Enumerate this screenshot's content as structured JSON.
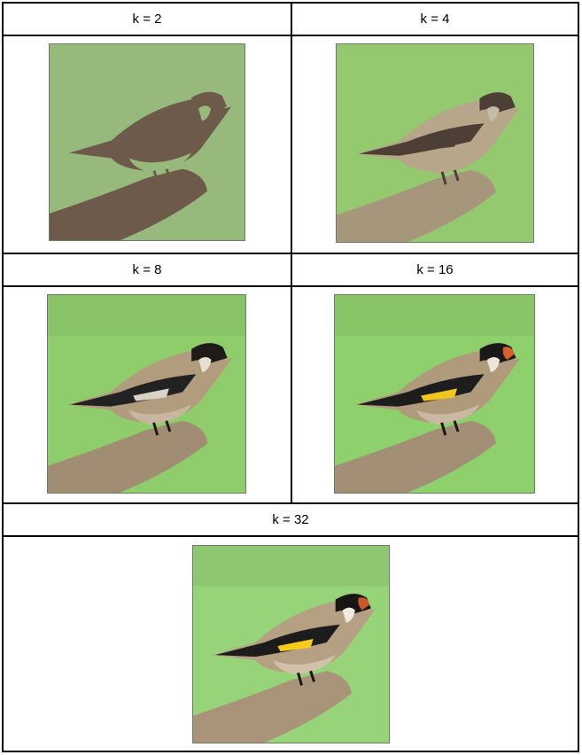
{
  "panels": [
    {
      "label": "k = 2",
      "palette": {
        "bg": "#98b97c",
        "bird": "#6e5a4a",
        "belly": "#98b97c",
        "wing": "#6e5a4a",
        "accent": "#6e5a4a",
        "branch": "#6e5a4a",
        "head": "#6e5a4a",
        "white": "#98b97c"
      }
    },
    {
      "label": "k = 4",
      "palette": {
        "bg": "#94c96f",
        "bird": "#b7a68a",
        "belly": "#b7a68a",
        "wing": "#4e3f36",
        "accent": "#4e3f36",
        "branch": "#a6977c",
        "head": "#4e3f36",
        "white": "#c6bba8"
      }
    },
    {
      "label": "k = 8",
      "palette": {
        "bg": "#8fcd6c",
        "bird": "#b29c7e",
        "belly": "#c7b7a1",
        "wing": "#222222",
        "accent": "#d9d3c7",
        "branch": "#a08d74",
        "head": "#1e1b18",
        "white": "#e6e0d4"
      }
    },
    {
      "label": "k = 16",
      "palette": {
        "bg": "#8ed06c",
        "bird": "#b09a7c",
        "belly": "#cab9a2",
        "wing": "#1d1d1d",
        "accent": "#f2c61a",
        "branch": "#a38f75",
        "head": "#1b1917",
        "white": "#ece6da",
        "face": "#d8622a"
      }
    },
    {
      "label": "k = 32",
      "palette": {
        "bg": "#97d378",
        "bird": "#b5a083",
        "belly": "#d1c1aa",
        "wing": "#1c1c1c",
        "accent": "#f5cc1c",
        "branch": "#a99479",
        "head": "#181614",
        "white": "#f0ebe0",
        "face": "#c9572b"
      }
    }
  ]
}
